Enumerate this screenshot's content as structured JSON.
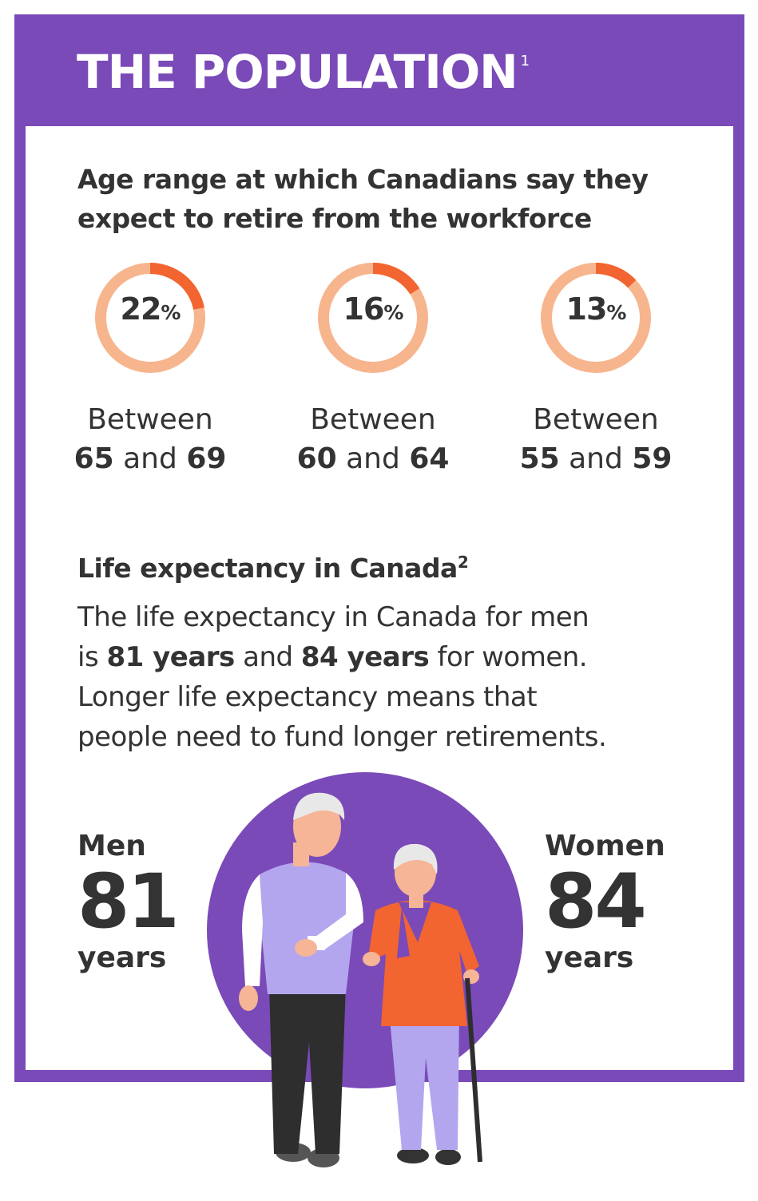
{
  "header": {
    "title": "THE POPULATION",
    "footnote": "1"
  },
  "retire": {
    "heading_line1": "Age range at which Canadians say they",
    "heading_line2": "expect to retire from the workforce",
    "stats": [
      {
        "value": "22",
        "unit": "%",
        "fraction": 0.22,
        "prefix": "Between",
        "from": "65",
        "and": "and",
        "to": "69"
      },
      {
        "value": "16",
        "unit": "%",
        "fraction": 0.16,
        "prefix": "Between",
        "from": "60",
        "and": "and",
        "to": "64"
      },
      {
        "value": "13",
        "unit": "%",
        "fraction": 0.13,
        "prefix": "Between",
        "from": "55",
        "and": "and",
        "to": "59"
      }
    ]
  },
  "life": {
    "heading": "Life expectancy in Canada",
    "footnote": "2",
    "p1": "The life expectancy in Canada for men",
    "p2_a": "is ",
    "p2_b": "81 years",
    "p2_c": " and ",
    "p2_d": "84 years",
    "p2_e": " for women.",
    "p3": "Longer life expectancy means that",
    "p4": "people need to fund longer retirements.",
    "men": {
      "label": "Men",
      "value": "81",
      "unit": "years"
    },
    "women": {
      "label": "Women",
      "value": "84",
      "unit": "years"
    }
  },
  "colors": {
    "purple": "#7a4ab8",
    "ring": "#f7b58e",
    "accent": "#f26430",
    "text": "#333333"
  }
}
